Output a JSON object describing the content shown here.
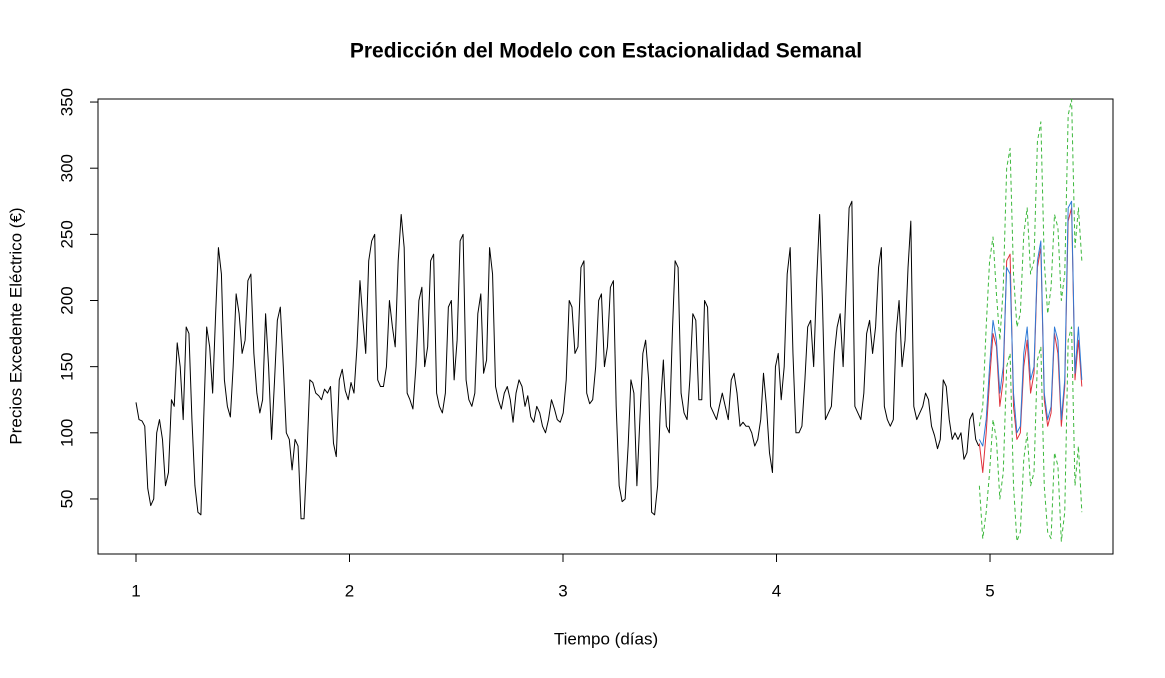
{
  "chart_data": {
    "type": "line",
    "title": "Predicción del Modelo con Estacionalidad Semanal",
    "x_label": "Tiempo (días)",
    "y_label": "Precios Excedente Eléctrico (€)",
    "xlim": [
      0.822,
      5.576
    ],
    "ylim": [
      8.4,
      352.3
    ],
    "xticks": [
      1,
      2,
      3,
      4,
      5
    ],
    "yticks": [
      50,
      100,
      150,
      200,
      250,
      300,
      350
    ],
    "grid": false,
    "series": [
      {
        "color": "#000000",
        "dash": false,
        "x": [
          1.0,
          1.014,
          1.028,
          1.041,
          1.055,
          1.069,
          1.083,
          1.097,
          1.11,
          1.124,
          1.138,
          1.152,
          1.166,
          1.179,
          1.193,
          1.207,
          1.221,
          1.235,
          1.248,
          1.262,
          1.276,
          1.29,
          1.304,
          1.317,
          1.331,
          1.345,
          1.359,
          1.373,
          1.386,
          1.4,
          1.414,
          1.428,
          1.442,
          1.455,
          1.469,
          1.483,
          1.497,
          1.511,
          1.524,
          1.538,
          1.552,
          1.566,
          1.58,
          1.593,
          1.607,
          1.621,
          1.635,
          1.649,
          1.662,
          1.676,
          1.69,
          1.704,
          1.718,
          1.731,
          1.745,
          1.759,
          1.773,
          1.787,
          1.8,
          1.814,
          1.828,
          1.842,
          1.856,
          1.869,
          1.883,
          1.897,
          1.911,
          1.925,
          1.938,
          1.952,
          1.966,
          1.98,
          1.994,
          2.007,
          2.021,
          2.035,
          2.049,
          2.063,
          2.076,
          2.09,
          2.104,
          2.118,
          2.132,
          2.145,
          2.159,
          2.173,
          2.187,
          2.201,
          2.214,
          2.228,
          2.242,
          2.256,
          2.27,
          2.283,
          2.297,
          2.311,
          2.325,
          2.339,
          2.352,
          2.366,
          2.38,
          2.394,
          2.408,
          2.421,
          2.435,
          2.449,
          2.463,
          2.477,
          2.49,
          2.504,
          2.518,
          2.532,
          2.546,
          2.559,
          2.573,
          2.587,
          2.601,
          2.615,
          2.628,
          2.642,
          2.656,
          2.67,
          2.684,
          2.697,
          2.711,
          2.725,
          2.739,
          2.753,
          2.766,
          2.78,
          2.794,
          2.808,
          2.822,
          2.835,
          2.849,
          2.863,
          2.877,
          2.891,
          2.904,
          2.918,
          2.932,
          2.946,
          2.96,
          2.973,
          2.987,
          3.001,
          3.015,
          3.029,
          3.042,
          3.056,
          3.07,
          3.084,
          3.098,
          3.111,
          3.125,
          3.139,
          3.153,
          3.167,
          3.18,
          3.194,
          3.208,
          3.222,
          3.236,
          3.249,
          3.263,
          3.277,
          3.291,
          3.305,
          3.318,
          3.332,
          3.346,
          3.36,
          3.374,
          3.387,
          3.401,
          3.415,
          3.429,
          3.443,
          3.456,
          3.47,
          3.484,
          3.498,
          3.512,
          3.525,
          3.539,
          3.553,
          3.567,
          3.581,
          3.594,
          3.608,
          3.622,
          3.636,
          3.65,
          3.663,
          3.677,
          3.691,
          3.705,
          3.719,
          3.732,
          3.746,
          3.76,
          3.774,
          3.788,
          3.801,
          3.815,
          3.829,
          3.843,
          3.857,
          3.87,
          3.884,
          3.898,
          3.912,
          3.926,
          3.939,
          3.953,
          3.967,
          3.981,
          3.995,
          4.008,
          4.022,
          4.036,
          4.05,
          4.064,
          4.077,
          4.091,
          4.105,
          4.119,
          4.133,
          4.146,
          4.16,
          4.174,
          4.188,
          4.202,
          4.215,
          4.229,
          4.243,
          4.257,
          4.271,
          4.284,
          4.298,
          4.312,
          4.326,
          4.34,
          4.353,
          4.367,
          4.381,
          4.395,
          4.409,
          4.422,
          4.436,
          4.45,
          4.464,
          4.478,
          4.491,
          4.505,
          4.519,
          4.533,
          4.547,
          4.56,
          4.574,
          4.588,
          4.602,
          4.616,
          4.629,
          4.643,
          4.657,
          4.671,
          4.685,
          4.698,
          4.712,
          4.726,
          4.74,
          4.754,
          4.767,
          4.781,
          4.795,
          4.809,
          4.823,
          4.836,
          4.85,
          4.864,
          4.878,
          4.892,
          4.905,
          4.919,
          4.933,
          4.947
        ],
        "values": [
          123,
          110,
          109,
          105,
          58,
          45,
          50,
          100,
          110,
          95,
          60,
          70,
          125,
          120,
          168,
          150,
          110,
          180,
          175,
          110,
          60,
          40,
          38,
          110,
          180,
          165,
          130,
          190,
          240,
          220,
          140,
          120,
          112,
          150,
          205,
          190,
          160,
          170,
          215,
          220,
          160,
          130,
          115,
          125,
          190,
          150,
          95,
          140,
          185,
          195,
          150,
          100,
          95,
          72,
          95,
          90,
          35,
          35,
          80,
          140,
          138,
          130,
          128,
          125,
          133,
          130,
          135,
          92,
          82,
          140,
          148,
          132,
          125,
          138,
          130,
          165,
          215,
          185,
          160,
          230,
          245,
          250,
          140,
          135,
          135,
          150,
          200,
          180,
          165,
          230,
          265,
          240,
          130,
          125,
          118,
          150,
          200,
          210,
          150,
          165,
          230,
          235,
          130,
          120,
          115,
          130,
          195,
          200,
          140,
          170,
          245,
          250,
          140,
          125,
          120,
          130,
          190,
          205,
          145,
          155,
          240,
          220,
          135,
          125,
          118,
          130,
          135,
          125,
          108,
          130,
          140,
          135,
          120,
          128,
          112,
          108,
          120,
          115,
          105,
          100,
          110,
          125,
          118,
          110,
          108,
          115,
          140,
          200,
          195,
          160,
          165,
          225,
          230,
          130,
          122,
          125,
          150,
          200,
          205,
          150,
          165,
          210,
          215,
          120,
          60,
          48,
          50,
          90,
          140,
          130,
          60,
          110,
          160,
          170,
          140,
          40,
          38,
          60,
          120,
          155,
          105,
          100,
          175,
          230,
          225,
          130,
          115,
          110,
          140,
          190,
          185,
          125,
          125,
          200,
          195,
          120,
          115,
          110,
          120,
          130,
          120,
          110,
          140,
          145,
          130,
          105,
          108,
          105,
          105,
          100,
          90,
          95,
          110,
          145,
          120,
          85,
          70,
          150,
          160,
          125,
          150,
          220,
          240,
          160,
          100,
          100,
          105,
          140,
          180,
          185,
          150,
          215,
          265,
          200,
          110,
          115,
          120,
          160,
          180,
          190,
          150,
          210,
          270,
          275,
          120,
          115,
          110,
          130,
          175,
          185,
          160,
          180,
          225,
          240,
          120,
          110,
          105,
          110,
          175,
          200,
          150,
          170,
          225,
          260,
          120,
          110,
          115,
          120,
          130,
          125,
          105,
          98,
          88,
          95,
          140,
          135,
          110,
          95,
          100,
          95,
          100,
          80,
          85,
          110,
          115,
          95,
          90
        ]
      },
      {
        "color": "#3cb83c",
        "dash": true,
        "x": [
          4.95,
          4.966,
          4.982,
          4.998,
          5.014,
          5.03,
          5.046,
          5.062,
          5.078,
          5.094,
          5.11,
          5.126,
          5.142,
          5.158,
          5.174,
          5.19,
          5.206,
          5.222,
          5.238,
          5.254,
          5.27,
          5.286,
          5.302,
          5.318,
          5.334,
          5.35,
          5.366,
          5.382,
          5.398,
          5.414,
          5.43
        ],
        "values": [
          105,
          120,
          180,
          230,
          248,
          205,
          170,
          210,
          300,
          315,
          220,
          180,
          190,
          250,
          270,
          220,
          230,
          320,
          335,
          230,
          190,
          210,
          265,
          255,
          200,
          220,
          340,
          352,
          240,
          270,
          230
        ]
      },
      {
        "color": "#3cb83c",
        "dash": true,
        "x": [
          4.95,
          4.966,
          4.982,
          4.998,
          5.014,
          5.03,
          5.046,
          5.062,
          5.078,
          5.094,
          5.11,
          5.126,
          5.142,
          5.158,
          5.174,
          5.19,
          5.206,
          5.222,
          5.238,
          5.254,
          5.27,
          5.286,
          5.302,
          5.318,
          5.334,
          5.35,
          5.366,
          5.382,
          5.398,
          5.414,
          5.43
        ],
        "values": [
          60,
          20,
          40,
          70,
          110,
          95,
          50,
          70,
          150,
          160,
          60,
          18,
          25,
          80,
          100,
          60,
          70,
          155,
          165,
          60,
          25,
          20,
          85,
          75,
          18,
          40,
          170,
          180,
          60,
          90,
          40
        ]
      },
      {
        "color": "#e0303a",
        "dash": false,
        "x": [
          4.95,
          4.966,
          4.982,
          4.998,
          5.014,
          5.03,
          5.046,
          5.062,
          5.078,
          5.094,
          5.11,
          5.126,
          5.142,
          5.158,
          5.174,
          5.19,
          5.206,
          5.222,
          5.238,
          5.254,
          5.27,
          5.286,
          5.302,
          5.318,
          5.334,
          5.35,
          5.366,
          5.382,
          5.398,
          5.414,
          5.43
        ],
        "values": [
          92,
          70,
          100,
          140,
          175,
          165,
          120,
          140,
          230,
          235,
          120,
          95,
          100,
          150,
          170,
          130,
          145,
          225,
          240,
          125,
          105,
          115,
          175,
          160,
          105,
          135,
          260,
          270,
          140,
          170,
          135
        ]
      },
      {
        "color": "#2e7ad6",
        "dash": false,
        "x": [
          4.95,
          4.966,
          4.982,
          4.998,
          5.014,
          5.03,
          5.046,
          5.062,
          5.078,
          5.094,
          5.11,
          5.126,
          5.142,
          5.158,
          5.174,
          5.19,
          5.206,
          5.222,
          5.238,
          5.254,
          5.27,
          5.286,
          5.302,
          5.318,
          5.334,
          5.35,
          5.366,
          5.382,
          5.398,
          5.414,
          5.43
        ],
        "values": [
          95,
          90,
          110,
          150,
          185,
          170,
          130,
          150,
          225,
          220,
          130,
          100,
          105,
          160,
          180,
          140,
          150,
          230,
          245,
          130,
          110,
          120,
          180,
          170,
          110,
          140,
          270,
          275,
          145,
          180,
          140
        ]
      }
    ]
  }
}
